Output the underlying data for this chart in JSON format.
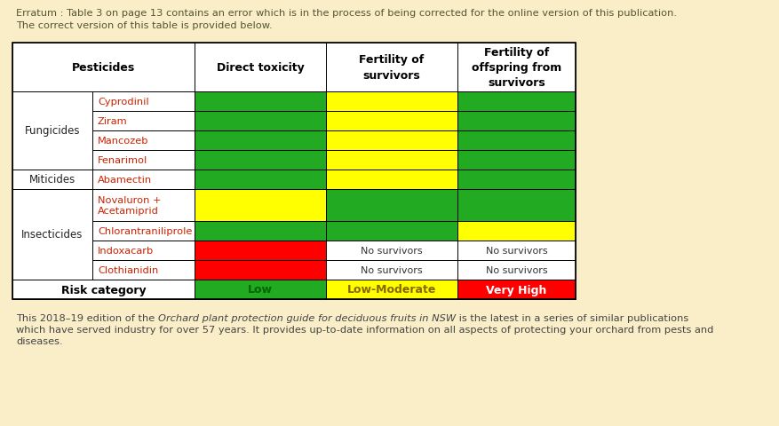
{
  "background_color": "#faeec8",
  "erratum_text_line1": "Erratum : Table 3 on page 13 contains an error which is in the process of being corrected for the online version of this publication.",
  "erratum_text_line2": "The correct version of this table is provided below.",
  "footer_normal1": "This 2018–19 edition of the ",
  "footer_italic": "Orchard plant protection guide for deciduous fruits in NSW",
  "footer_normal2": " is the latest in a series of similar publications",
  "footer_line2": "which have served industry for over 57 years. It provides up-to-date information on all aspects of protecting your orchard from pests and",
  "footer_line3": "diseases.",
  "rows": [
    {
      "group": "Fungicides",
      "name": "Cyprodinil",
      "dt": "green",
      "fs": "yellow",
      "fo": "green",
      "fs_text": "",
      "fo_text": ""
    },
    {
      "group": "Fungicides",
      "name": "Ziram",
      "dt": "green",
      "fs": "yellow",
      "fo": "green",
      "fs_text": "",
      "fo_text": ""
    },
    {
      "group": "Fungicides",
      "name": "Mancozeb",
      "dt": "green",
      "fs": "yellow",
      "fo": "green",
      "fs_text": "",
      "fo_text": ""
    },
    {
      "group": "Fungicides",
      "name": "Fenarimol",
      "dt": "green",
      "fs": "yellow",
      "fo": "green",
      "fs_text": "",
      "fo_text": ""
    },
    {
      "group": "Miticides",
      "name": "Abamectin",
      "dt": "green",
      "fs": "yellow",
      "fo": "green",
      "fs_text": "",
      "fo_text": ""
    },
    {
      "group": "Insecticides",
      "name": "Novaluron +\nAcetamiprid",
      "dt": "yellow",
      "fs": "green",
      "fo": "green",
      "fs_text": "",
      "fo_text": ""
    },
    {
      "group": "Insecticides",
      "name": "Chlorantraniliprole",
      "dt": "green",
      "fs": "green",
      "fo": "yellow",
      "fs_text": "",
      "fo_text": ""
    },
    {
      "group": "Insecticides",
      "name": "Indoxacarb",
      "dt": "red",
      "fs": "white",
      "fo": "white",
      "fs_text": "No survivors",
      "fo_text": "No survivors"
    },
    {
      "group": "Insecticides",
      "name": "Clothianidin",
      "dt": "red",
      "fs": "white",
      "fo": "white",
      "fs_text": "No survivors",
      "fo_text": "No survivors"
    }
  ],
  "risk": {
    "label": "Risk category",
    "dt_color": "#22aa22",
    "dt_text": "Low",
    "dt_text_color": "#006600",
    "fs_color": "#ffff00",
    "fs_text": "Low-Moderate",
    "fs_text_color": "#886600",
    "fo_color": "#ff0000",
    "fo_text": "Very High",
    "fo_text_color": "#ffffff"
  },
  "green": "#22aa22",
  "yellow": "#ffff00",
  "red": "#ff0000",
  "white": "#ffffff",
  "name_color": "#cc2200",
  "group_color": "#222222",
  "header_bold_color": "#000000"
}
